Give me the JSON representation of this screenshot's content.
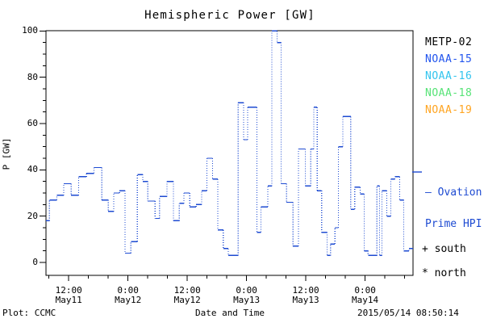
{
  "title": "Hemispheric Power [GW]",
  "footer": {
    "plot_source": "Plot: CCMC",
    "xaxis_title": "Date and Time",
    "timestamp": "2015/05/14 08:50:14"
  },
  "chart_data": {
    "type": "line",
    "subtype": "step-plot-with-dotted-connectors",
    "title": "Hemispheric Power [GW]",
    "xlabel": "Date and Time",
    "ylabel": "P [GW]",
    "ylim": [
      0,
      100
    ],
    "y_major_ticks": [
      0,
      20,
      40,
      60,
      80,
      100
    ],
    "y_minor_step": 5,
    "x_hours_note": "t = hours since 2015-05-11 00:00 UT",
    "x_hours_range": [
      7.4,
      81.7
    ],
    "x_minor_step_hours": 4,
    "x_major_ticks": [
      {
        "t": 12,
        "time": "12:00",
        "date": "May11"
      },
      {
        "t": 24,
        "time": "0:00",
        "date": "May12"
      },
      {
        "t": 36,
        "time": "12:00",
        "date": "May12"
      },
      {
        "t": 48,
        "time": "0:00",
        "date": "May13"
      },
      {
        "t": 60,
        "time": "12:00",
        "date": "May13"
      },
      {
        "t": 72,
        "time": "0:00",
        "date": "May14"
      }
    ],
    "line_color": "#1e4bd2",
    "grid": false,
    "legend_position": "right-outside",
    "series": [
      {
        "name": "Ovation Prime HPI",
        "units": "GW",
        "points_t_v": [
          [
            7.4,
            18
          ],
          [
            8.1,
            27
          ],
          [
            9.6,
            29
          ],
          [
            11.0,
            34
          ],
          [
            12.5,
            29
          ],
          [
            14.0,
            37
          ],
          [
            15.6,
            38.5
          ],
          [
            17.1,
            41
          ],
          [
            18.7,
            27
          ],
          [
            20.0,
            22
          ],
          [
            21.1,
            30
          ],
          [
            22.3,
            31
          ],
          [
            23.4,
            4
          ],
          [
            24.6,
            9
          ],
          [
            25.9,
            38
          ],
          [
            27.0,
            35
          ],
          [
            28.0,
            26.5
          ],
          [
            29.5,
            19
          ],
          [
            30.4,
            28.5
          ],
          [
            31.9,
            35
          ],
          [
            33.2,
            18
          ],
          [
            34.4,
            25.5
          ],
          [
            35.3,
            30
          ],
          [
            36.5,
            24
          ],
          [
            37.8,
            25
          ],
          [
            38.9,
            31
          ],
          [
            40.0,
            45
          ],
          [
            41.1,
            36
          ],
          [
            42.2,
            14
          ],
          [
            43.3,
            6
          ],
          [
            44.3,
            3
          ],
          [
            46.3,
            69
          ],
          [
            47.4,
            53
          ],
          [
            48.2,
            67
          ],
          [
            50.1,
            13
          ],
          [
            50.9,
            24
          ],
          [
            52.3,
            33
          ],
          [
            53.1,
            100
          ],
          [
            54.2,
            95
          ],
          [
            55.0,
            34
          ],
          [
            56.1,
            26
          ],
          [
            57.4,
            7
          ],
          [
            58.5,
            49
          ],
          [
            59.9,
            33
          ],
          [
            61.0,
            49
          ],
          [
            61.6,
            67
          ],
          [
            62.3,
            31
          ],
          [
            63.2,
            13
          ],
          [
            64.3,
            3
          ],
          [
            65.0,
            8
          ],
          [
            65.9,
            15
          ],
          [
            66.6,
            50
          ],
          [
            67.5,
            63
          ],
          [
            69.1,
            23
          ],
          [
            69.9,
            32.5
          ],
          [
            71.0,
            29.5
          ],
          [
            71.8,
            5
          ],
          [
            72.6,
            3
          ],
          [
            74.4,
            33
          ],
          [
            74.9,
            3
          ],
          [
            75.4,
            31
          ],
          [
            76.4,
            20
          ],
          [
            77.2,
            36
          ],
          [
            78.0,
            37
          ],
          [
            79.0,
            27
          ],
          [
            79.8,
            5
          ],
          [
            80.9,
            6
          ]
        ]
      }
    ],
    "legend_satellites": [
      {
        "label": "METP-02",
        "color": "#000000"
      },
      {
        "label": "NOAA-15",
        "color": "#2255ee"
      },
      {
        "label": "NOAA-16",
        "color": "#33c4ee"
      },
      {
        "label": "NOAA-18",
        "color": "#57e377"
      },
      {
        "label": "NOAA-19",
        "color": "#ffa522"
      }
    ],
    "annotations": {
      "ovation_line1": "– Ovation",
      "ovation_line2": "Prime HPI",
      "south_marker": "+ south",
      "north_marker": "* north"
    }
  }
}
